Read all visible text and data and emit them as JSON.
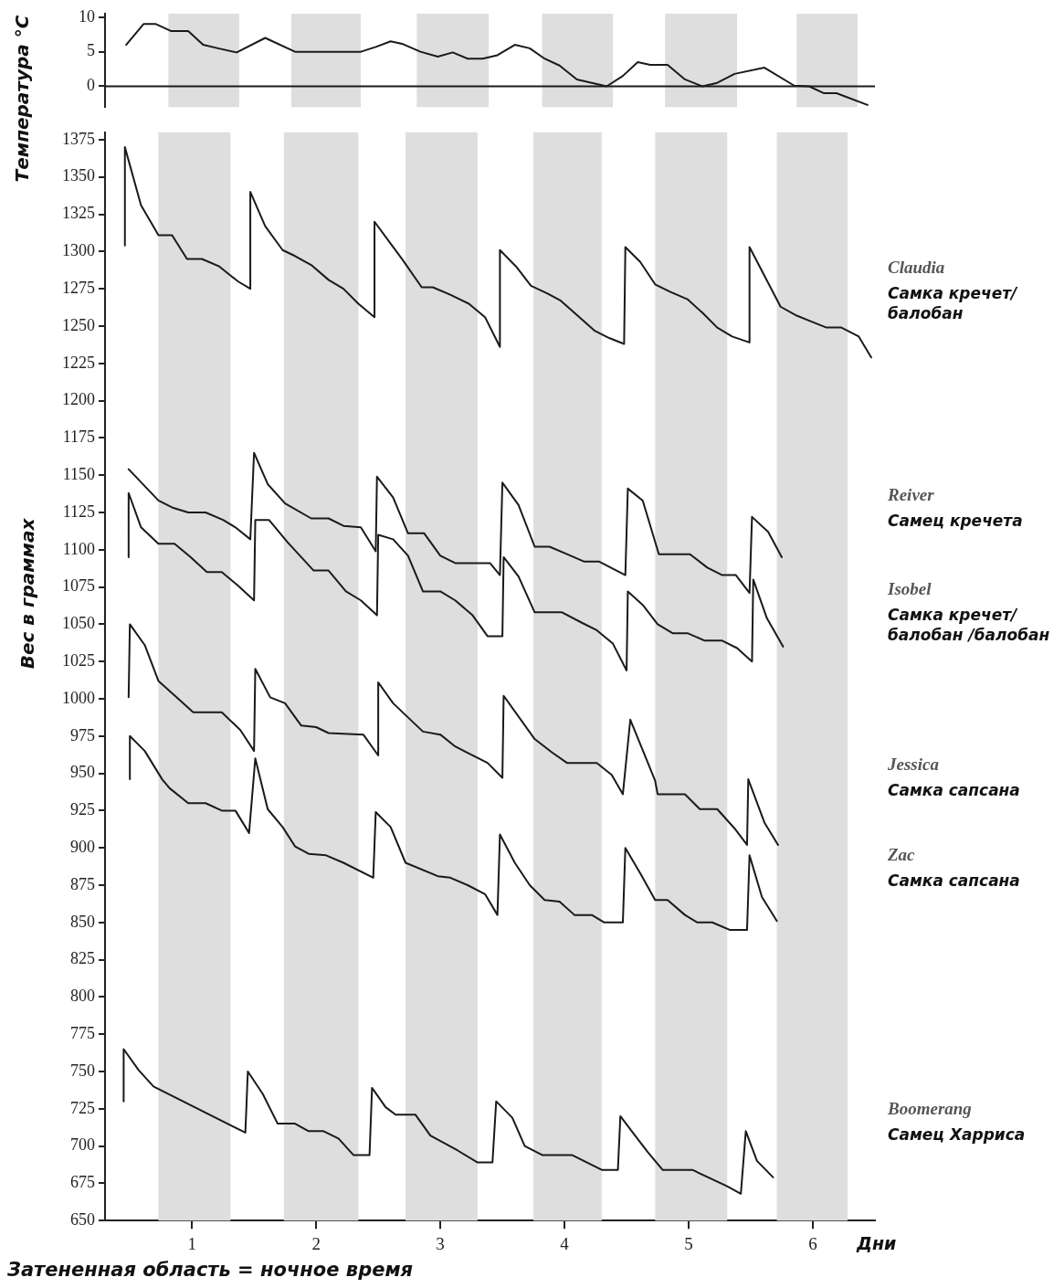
{
  "chart_data": [
    {
      "type": "line",
      "ylabel": "Температура °C",
      "xlim": [
        0.3,
        6.5
      ],
      "ylim": [
        -3,
        10.5
      ],
      "yticks": [
        0,
        5,
        10
      ],
      "tick_labels": "y",
      "ref_lines": [
        {
          "axis": "y",
          "value": 0,
          "color": "#1a1a1a"
        }
      ],
      "bands": [
        {
          "axis": "x",
          "from": 0.81,
          "to": 1.38,
          "color": "#dedede"
        },
        {
          "axis": "x",
          "from": 1.8,
          "to": 2.36,
          "color": "#dedede"
        },
        {
          "axis": "x",
          "from": 2.81,
          "to": 3.39,
          "color": "#dedede"
        },
        {
          "axis": "x",
          "from": 3.82,
          "to": 4.39,
          "color": "#dedede"
        },
        {
          "axis": "x",
          "from": 4.81,
          "to": 5.39,
          "color": "#dedede"
        },
        {
          "axis": "x",
          "from": 5.87,
          "to": 6.36,
          "color": "#dedede"
        }
      ],
      "series": [
        {
          "color": "#1a1a1a",
          "x": [
            0.47,
            0.61,
            0.71,
            0.83,
            0.97,
            1.09,
            1.21,
            1.36,
            1.59,
            1.83,
            2.36,
            2.48,
            2.6,
            2.7,
            2.84,
            2.98,
            3.1,
            3.22,
            3.34,
            3.46,
            3.6,
            3.72,
            3.84,
            3.96,
            4.1,
            4.34,
            4.47,
            4.59,
            4.69,
            4.83,
            4.97,
            5.11,
            5.23,
            5.37,
            5.61,
            5.85,
            5.97,
            6.09,
            6.19,
            6.44
          ],
          "values": [
            6.0,
            9.0,
            9.0,
            8.0,
            8.0,
            6.0,
            5.5,
            4.9,
            7.0,
            5.0,
            5.0,
            5.7,
            6.5,
            6.1,
            5.0,
            4.3,
            4.9,
            4.0,
            4.0,
            4.5,
            6.0,
            5.5,
            4.0,
            3.0,
            1.0,
            0.0,
            1.5,
            3.5,
            3.1,
            3.1,
            1.0,
            0.0,
            0.5,
            1.8,
            2.7,
            0.1,
            0.0,
            -1.0,
            -1.0,
            -2.7
          ]
        }
      ]
    },
    {
      "type": "line",
      "xlabel": "Дни",
      "ylabel": "Вес в граммах",
      "xlim": [
        0.3,
        6.5
      ],
      "ylim": [
        650,
        1380
      ],
      "xticks": [
        1,
        2,
        3,
        4,
        5,
        6
      ],
      "yticks": [
        650,
        675,
        700,
        725,
        750,
        775,
        800,
        825,
        850,
        875,
        900,
        925,
        950,
        975,
        1000,
        1025,
        1050,
        1075,
        1100,
        1125,
        1150,
        1175,
        1200,
        1225,
        1250,
        1275,
        1300,
        1325,
        1350,
        1375
      ],
      "bands": [
        {
          "axis": "x",
          "from": 0.73,
          "to": 1.31,
          "color": "#dedede"
        },
        {
          "axis": "x",
          "from": 1.74,
          "to": 2.34,
          "color": "#dedede"
        },
        {
          "axis": "x",
          "from": 2.72,
          "to": 3.3,
          "color": "#dedede"
        },
        {
          "axis": "x",
          "from": 3.75,
          "to": 4.3,
          "color": "#dedede"
        },
        {
          "axis": "x",
          "from": 4.73,
          "to": 5.31,
          "color": "#dedede"
        },
        {
          "axis": "x",
          "from": 5.71,
          "to": 6.28,
          "color": "#dedede"
        }
      ],
      "annotations": [
        "Самка кречет/балобан",
        "Самец кречета",
        "Самка кречет/балобан /балобан",
        "Самка сапсана",
        "Самка сапсана",
        "Самец Харриса",
        "Затененная область = ночное время"
      ],
      "series": [
        {
          "name": "Claudia",
          "color": "#1a1a1a",
          "x": [
            0.46,
            0.46,
            0.59,
            0.73,
            0.84,
            0.96,
            1.08,
            1.22,
            1.37,
            1.47,
            1.47,
            1.59,
            1.73,
            1.83,
            1.96,
            2.1,
            2.22,
            2.34,
            2.47,
            2.47,
            2.7,
            2.85,
            2.94,
            3.08,
            3.23,
            3.36,
            3.48,
            3.48,
            3.61,
            3.73,
            3.86,
            3.97,
            4.12,
            4.24,
            4.36,
            4.48,
            4.49,
            4.61,
            4.73,
            4.85,
            4.99,
            5.11,
            5.23,
            5.35,
            5.49,
            5.49,
            5.74,
            5.87,
            5.99,
            6.11,
            6.23,
            6.37,
            6.47
          ],
          "values": [
            1304,
            1370,
            1331,
            1311,
            1311,
            1295,
            1295,
            1290,
            1280,
            1275,
            1340,
            1317,
            1301,
            1297,
            1291,
            1281,
            1275,
            1265,
            1256,
            1320,
            1294,
            1276,
            1276,
            1271,
            1265,
            1256,
            1236,
            1301,
            1290,
            1277,
            1272,
            1267,
            1256,
            1247,
            1242,
            1238,
            1303,
            1293,
            1278,
            1273,
            1268,
            1259,
            1249,
            1243,
            1239,
            1303,
            1263,
            1257,
            1253,
            1249,
            1249,
            1243,
            1229
          ]
        },
        {
          "name": "Reiver",
          "color": "#1a1a1a",
          "x": [
            0.49,
            0.73,
            0.85,
            0.97,
            1.11,
            1.25,
            1.35,
            1.47,
            1.5,
            1.61,
            1.75,
            1.96,
            2.1,
            2.22,
            2.36,
            2.48,
            2.49,
            2.62,
            2.74,
            2.87,
            3.0,
            3.12,
            3.4,
            3.48,
            3.5,
            3.63,
            3.76,
            3.88,
            4.02,
            4.16,
            4.28,
            4.49,
            4.51,
            4.63,
            4.76,
            5.01,
            5.15,
            5.27,
            5.38,
            5.49,
            5.51,
            5.64,
            5.75
          ],
          "values": [
            1154,
            1133,
            1128,
            1125,
            1125,
            1120,
            1115,
            1107,
            1165,
            1144,
            1131,
            1121,
            1121,
            1116,
            1115,
            1099,
            1149,
            1135,
            1111,
            1111,
            1096,
            1091,
            1091,
            1083,
            1145,
            1130,
            1102,
            1102,
            1097,
            1092,
            1092,
            1083,
            1141,
            1133,
            1097,
            1097,
            1088,
            1083,
            1083,
            1071,
            1122,
            1112,
            1095
          ]
        },
        {
          "name": "Isobel",
          "color": "#1a1a1a",
          "x": [
            0.49,
            0.49,
            0.59,
            0.73,
            0.86,
            0.99,
            1.12,
            1.24,
            1.37,
            1.5,
            1.51,
            1.62,
            1.77,
            1.98,
            2.1,
            2.24,
            2.36,
            2.49,
            2.5,
            2.62,
            2.74,
            2.86,
            3.0,
            3.12,
            3.26,
            3.38,
            3.5,
            3.51,
            3.63,
            3.76,
            3.98,
            4.14,
            4.26,
            4.39,
            4.5,
            4.51,
            4.63,
            4.75,
            4.87,
            4.99,
            5.13,
            5.27,
            5.39,
            5.51,
            5.52,
            5.63,
            5.76
          ],
          "values": [
            1095,
            1138,
            1115,
            1104,
            1104,
            1095,
            1085,
            1085,
            1076,
            1066,
            1120,
            1120,
            1105,
            1086,
            1086,
            1072,
            1066,
            1056,
            1110,
            1107,
            1096,
            1072,
            1072,
            1066,
            1056,
            1042,
            1042,
            1095,
            1082,
            1058,
            1058,
            1051,
            1046,
            1037,
            1019,
            1072,
            1063,
            1050,
            1044,
            1044,
            1039,
            1039,
            1034,
            1025,
            1080,
            1054,
            1035
          ]
        },
        {
          "name": "Jessica",
          "color": "#1a1a1a",
          "x": [
            0.49,
            0.5,
            0.62,
            0.73,
            1.01,
            1.24,
            1.39,
            1.5,
            1.51,
            1.63,
            1.75,
            1.88,
            2.0,
            2.1,
            2.38,
            2.5,
            2.5,
            2.62,
            2.86,
            3.0,
            3.12,
            3.38,
            3.5,
            3.51,
            3.76,
            3.9,
            4.02,
            4.26,
            4.38,
            4.47,
            4.53,
            4.73,
            4.75,
            4.97,
            5.09,
            5.23,
            5.37,
            5.47,
            5.48,
            5.61,
            5.72
          ],
          "values": [
            1001,
            1050,
            1036,
            1012,
            991,
            991,
            979,
            965,
            1020,
            1001,
            997,
            982,
            981,
            977,
            976,
            962,
            1011,
            997,
            978,
            976,
            968,
            957,
            947,
            1002,
            973,
            964,
            957,
            957,
            949,
            936,
            986,
            945,
            936,
            936,
            926,
            926,
            913,
            902,
            946,
            917,
            902
          ]
        },
        {
          "name": "Zac",
          "color": "#1a1a1a",
          "x": [
            0.5,
            0.5,
            0.62,
            0.76,
            0.82,
            0.97,
            1.11,
            1.24,
            1.35,
            1.46,
            1.51,
            1.61,
            1.73,
            1.83,
            1.94,
            2.08,
            2.22,
            2.46,
            2.48,
            2.6,
            2.72,
            2.98,
            3.08,
            3.22,
            3.36,
            3.46,
            3.48,
            3.6,
            3.72,
            3.84,
            3.96,
            4.08,
            4.22,
            4.32,
            4.47,
            4.49,
            4.61,
            4.73,
            4.83,
            4.97,
            5.07,
            5.19,
            5.33,
            5.47,
            5.49,
            5.59,
            5.71
          ],
          "values": [
            946,
            975,
            965,
            946,
            940,
            930,
            930,
            925,
            925,
            910,
            960,
            926,
            914,
            901,
            896,
            895,
            890,
            880,
            924,
            914,
            890,
            881,
            880,
            875,
            869,
            855,
            909,
            890,
            875,
            865,
            864,
            855,
            855,
            850,
            850,
            900,
            883,
            865,
            865,
            855,
            850,
            850,
            845,
            845,
            895,
            867,
            851
          ]
        },
        {
          "name": "Boomerang",
          "color": "#1a1a1a",
          "x": [
            0.45,
            0.45,
            0.57,
            0.69,
            1.43,
            1.45,
            1.57,
            1.69,
            1.83,
            1.94,
            2.06,
            2.18,
            2.3,
            2.43,
            2.45,
            2.56,
            2.64,
            2.8,
            2.92,
            3.14,
            3.3,
            3.42,
            3.45,
            3.58,
            3.68,
            3.82,
            4.06,
            4.3,
            4.43,
            4.45,
            4.55,
            4.67,
            4.79,
            5.03,
            5.31,
            5.42,
            5.46,
            5.55,
            5.68
          ],
          "values": [
            730,
            765,
            751,
            740,
            709,
            750,
            735,
            715,
            715,
            710,
            710,
            705,
            694,
            694,
            739,
            726,
            721,
            721,
            707,
            697,
            689,
            689,
            730,
            719,
            700,
            694,
            694,
            684,
            684,
            720,
            709,
            696,
            684,
            684,
            673,
            668,
            710,
            690,
            679
          ]
        }
      ]
    }
  ]
}
